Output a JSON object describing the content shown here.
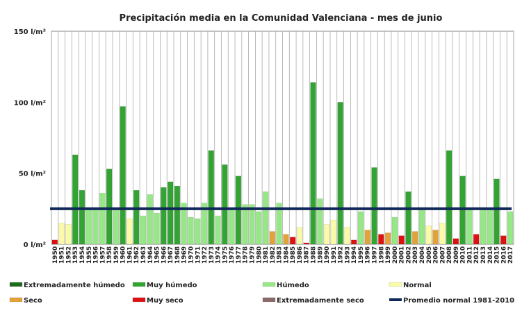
{
  "chart_data": {
    "type": "bar",
    "title": "Precipitación media en la Comunidad Valenciana - mes de junio",
    "unit": "l/m²",
    "ylim": [
      0,
      150
    ],
    "yticks": [
      "0 l/m²",
      "50 l/m²",
      "100 l/m²",
      "150 l/m²"
    ],
    "ytick_values": [
      0,
      50,
      100,
      150
    ],
    "grid": "vertical",
    "normal_value": 25,
    "normal_label": "Promedio normal 1981-2010",
    "categories": [
      "1950",
      "1951",
      "1952",
      "1953",
      "1954",
      "1955",
      "1956",
      "1957",
      "1958",
      "1959",
      "1960",
      "1961",
      "1962",
      "1963",
      "1964",
      "1965",
      "1966",
      "1967",
      "1968",
      "1969",
      "1970",
      "1971",
      "1972",
      "1973",
      "1974",
      "1975",
      "1976",
      "1977",
      "1978",
      "1979",
      "1980",
      "1981",
      "1982",
      "1983",
      "1984",
      "1985",
      "1986",
      "1987",
      "1988",
      "1989",
      "1990",
      "1991",
      "1992",
      "1993",
      "1994",
      "1995",
      "1996",
      "1997",
      "1998",
      "1999",
      "2000",
      "2001",
      "2002",
      "2003",
      "2004",
      "2005",
      "2006",
      "2007",
      "2008",
      "2009",
      "2010",
      "2011",
      "2012",
      "2013",
      "2014",
      "2015",
      "2016",
      "2017"
    ],
    "values": [
      3,
      15,
      14,
      63,
      38,
      25,
      25,
      36,
      53,
      25,
      97,
      18,
      38,
      20,
      35,
      22,
      40,
      44,
      41,
      29,
      19,
      18,
      29,
      66,
      20,
      56,
      25,
      48,
      28,
      28,
      23,
      37,
      9,
      29,
      7,
      5,
      12,
      1,
      114,
      32,
      14,
      17,
      100,
      12,
      3,
      23,
      10,
      54,
      7,
      8,
      19,
      6,
      37,
      9,
      24,
      13,
      10,
      15,
      66,
      4,
      48,
      24,
      7,
      25,
      25,
      46,
      6,
      23
    ],
    "classes": [
      "ms",
      "n",
      "n",
      "mh",
      "mh",
      "h",
      "h",
      "h",
      "mh",
      "h",
      "mh",
      "n",
      "mh",
      "h",
      "h",
      "h",
      "mh",
      "mh",
      "mh",
      "h",
      "h",
      "h",
      "h",
      "mh",
      "h",
      "mh",
      "h",
      "mh",
      "h",
      "h",
      "h",
      "h",
      "s",
      "h",
      "s",
      "ms",
      "n",
      "ms",
      "mh",
      "h",
      "n",
      "n",
      "mh",
      "n",
      "ms",
      "h",
      "s",
      "mh",
      "ms",
      "s",
      "h",
      "ms",
      "mh",
      "s",
      "h",
      "n",
      "s",
      "n",
      "mh",
      "ms",
      "mh",
      "h",
      "ms",
      "h",
      "h",
      "mh",
      "ms",
      "h"
    ],
    "legend": [
      {
        "key": "eh",
        "label": "Extremadamente húmedo",
        "color": "#1e6b1e"
      },
      {
        "key": "mh",
        "label": "Muy húmedo",
        "color": "#33a333"
      },
      {
        "key": "h",
        "label": "Húmedo",
        "color": "#96e886"
      },
      {
        "key": "n",
        "label": "Normal",
        "color": "#fafaa8"
      },
      {
        "key": "s",
        "label": "Seco",
        "color": "#e2a23a"
      },
      {
        "key": "ms",
        "label": "Muy seco",
        "color": "#dd1111"
      },
      {
        "key": "es",
        "label": "Extremadamente seco",
        "color": "#8a6a6a"
      },
      {
        "key": "normal",
        "label": "Promedio normal 1981-2010",
        "color": "#10285a"
      }
    ]
  }
}
